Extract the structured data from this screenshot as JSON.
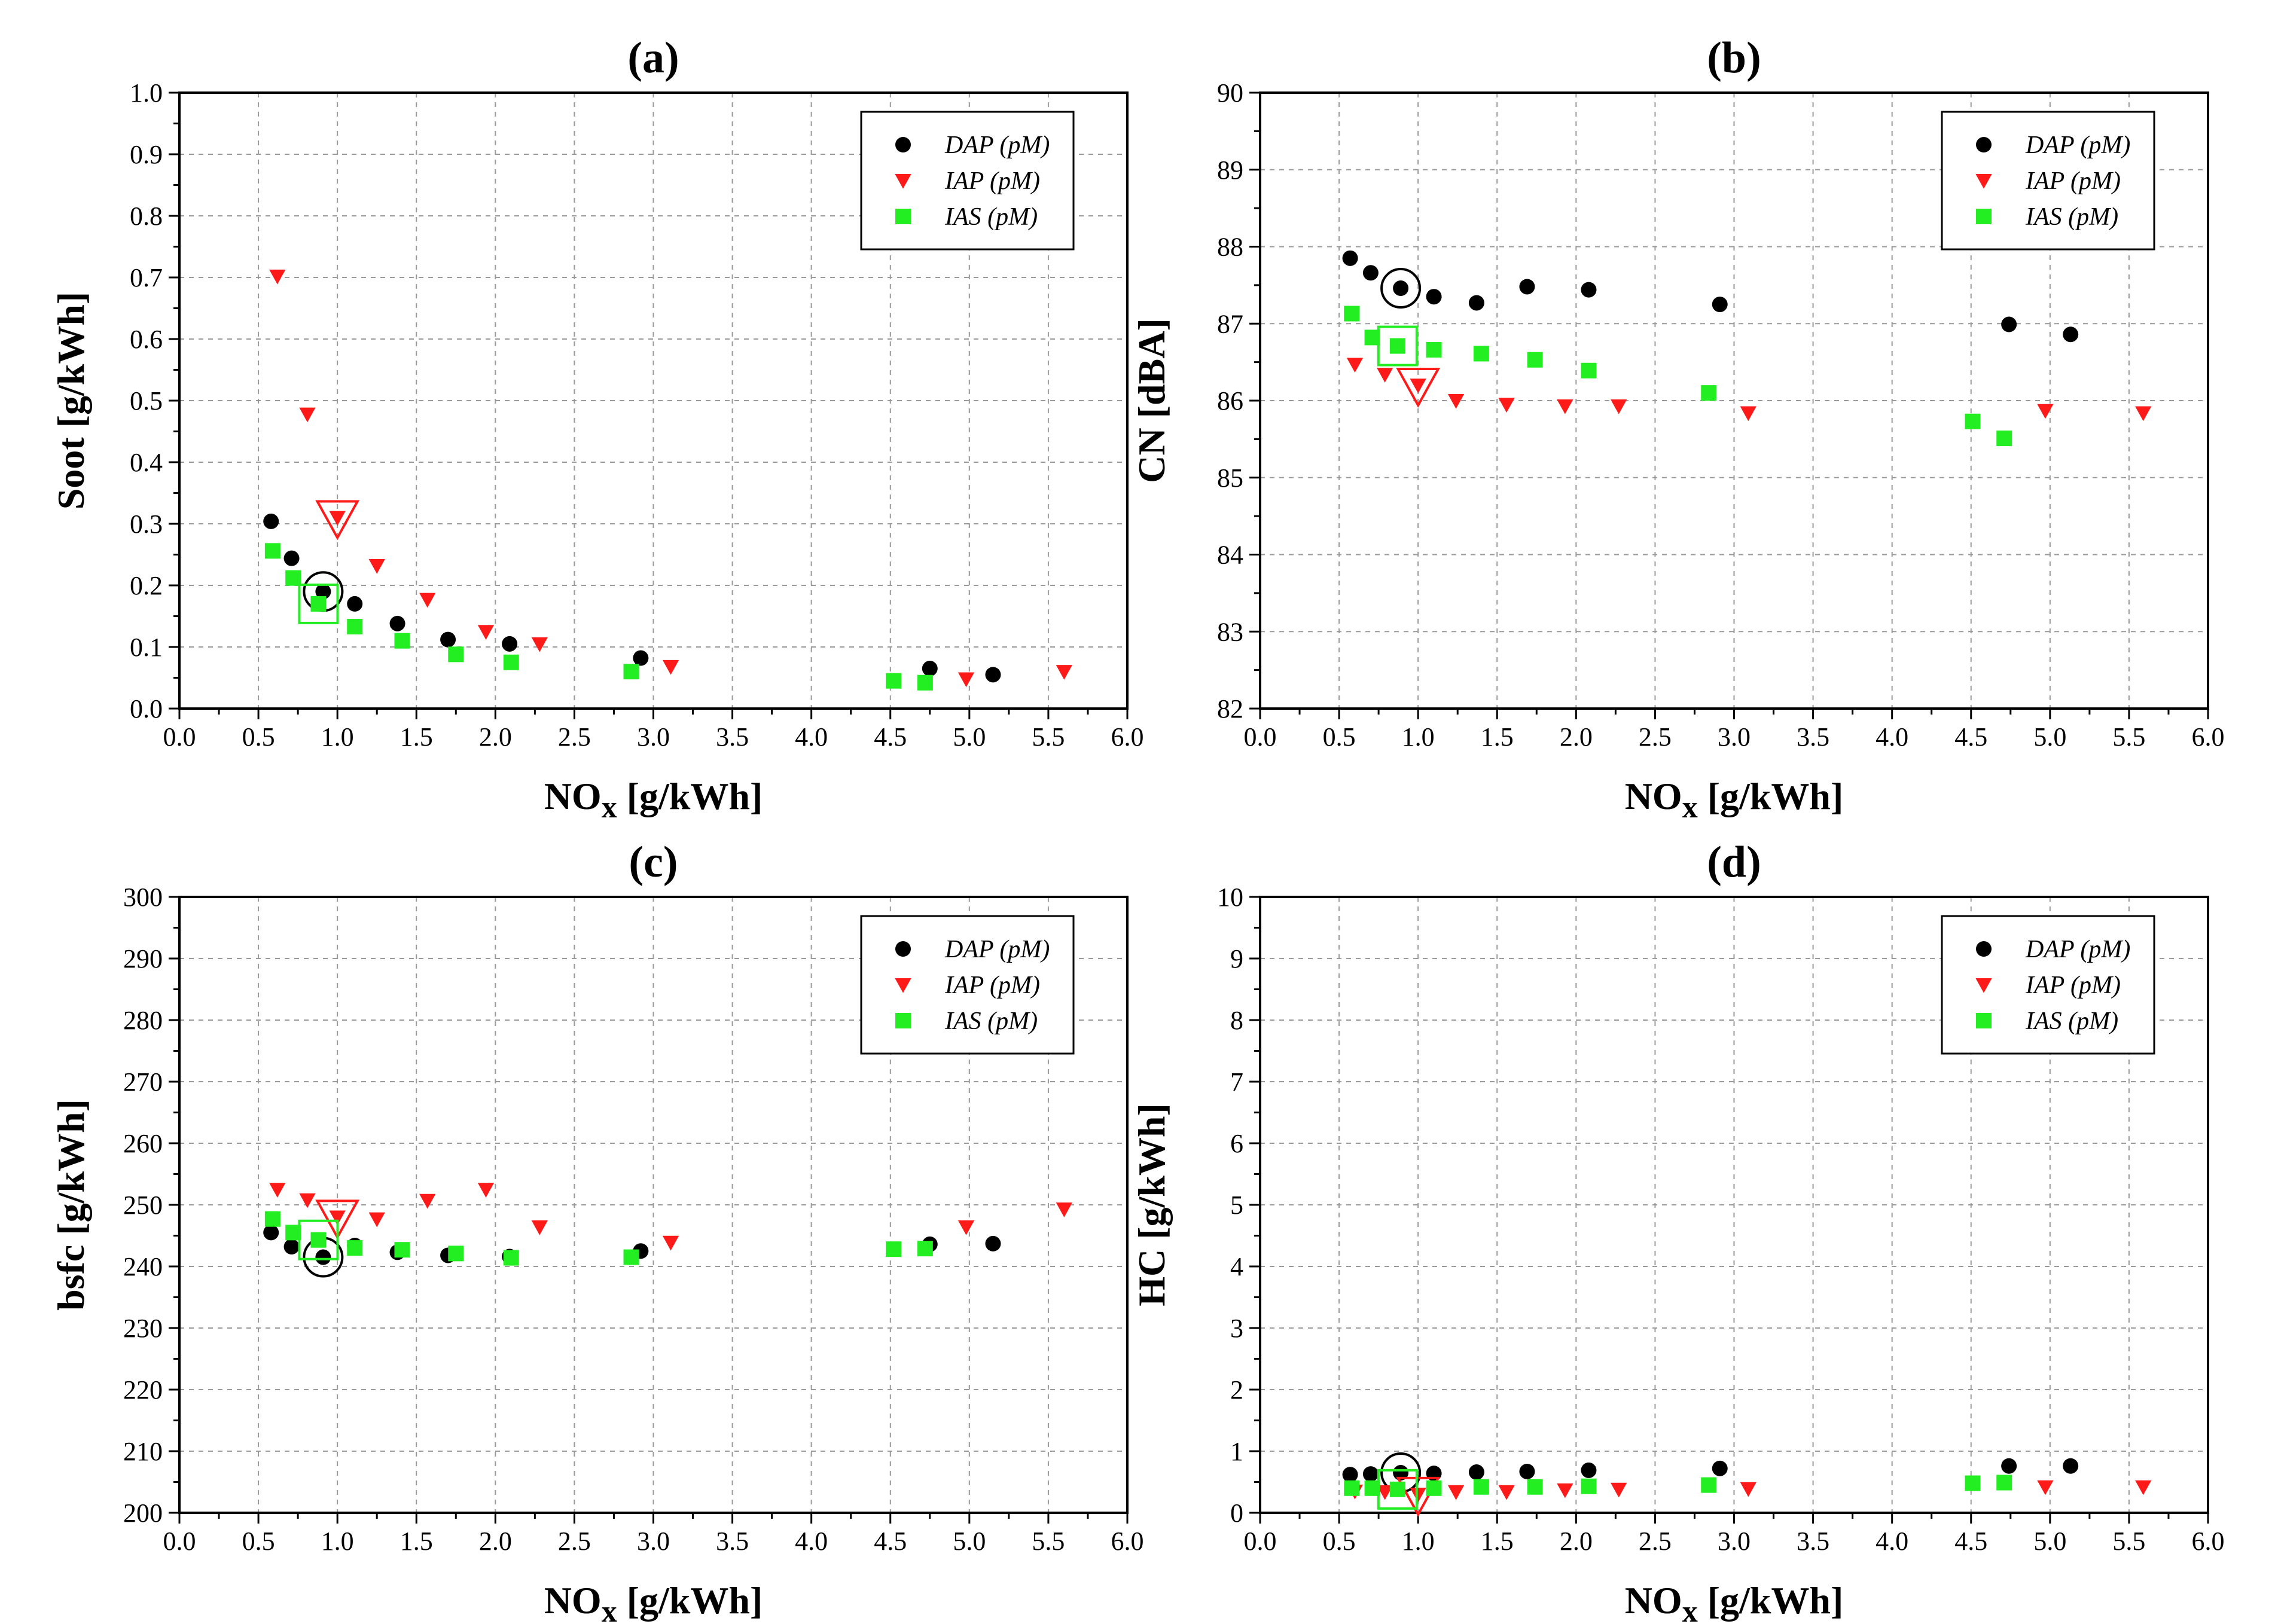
{
  "colors": {
    "dap": "#000000",
    "iap": "#ff1a1a",
    "ias": "#22ee22"
  },
  "chart_data": [
    {
      "id": "a",
      "type": "scatter",
      "title": "(a)",
      "xlabel": "NO",
      "xlabel_sub": "x",
      "xlabel_unit": "[g/kWh]",
      "ylabel": "Soot [g/kWh]",
      "xlim": [
        0,
        6
      ],
      "ylim": [
        0,
        1
      ],
      "xticks": [
        0,
        0.5,
        1,
        1.5,
        2,
        2.5,
        3,
        3.5,
        4,
        4.5,
        5,
        5.5,
        6
      ],
      "xticklabels": [
        "0.0",
        "0.5",
        "1.0",
        "1.5",
        "2.0",
        "2.5",
        "3.0",
        "3.5",
        "4.0",
        "4.5",
        "5.0",
        "5.5",
        "6.0"
      ],
      "yticks": [
        0,
        0.1,
        0.2,
        0.3,
        0.4,
        0.5,
        0.6,
        0.7,
        0.8,
        0.9,
        1.0
      ],
      "yticklabels": [
        "0.0",
        "0.1",
        "0.2",
        "0.3",
        "0.4",
        "0.5",
        "0.6",
        "0.7",
        "0.8",
        "0.9",
        "1.0"
      ],
      "legend_position": "top-right",
      "series": [
        {
          "name": "DAP (pM)",
          "marker": "circle",
          "x": [
            0.58,
            0.71,
            0.91,
            1.11,
            1.38,
            1.7,
            2.09,
            2.92,
            4.75,
            5.15
          ],
          "y": [
            0.304,
            0.244,
            0.19,
            0.17,
            0.138,
            0.112,
            0.105,
            0.082,
            0.065,
            0.055
          ],
          "highlight": {
            "x": 0.91,
            "y": 0.19
          }
        },
        {
          "name": "IAP (pM)",
          "marker": "triangle-down",
          "x": [
            0.62,
            0.81,
            1.0,
            1.25,
            1.57,
            1.94,
            2.28,
            3.11,
            4.98,
            5.6
          ],
          "y": [
            0.702,
            0.478,
            0.31,
            0.232,
            0.177,
            0.125,
            0.105,
            0.068,
            0.048,
            0.06
          ],
          "highlight": {
            "x": 1.0,
            "y": 0.31
          }
        },
        {
          "name": "IAS (pM)",
          "marker": "square",
          "x": [
            0.59,
            0.72,
            0.88,
            1.11,
            1.41,
            1.75,
            2.1,
            2.86,
            4.52,
            4.72
          ],
          "y": [
            0.256,
            0.212,
            0.17,
            0.133,
            0.11,
            0.088,
            0.075,
            0.06,
            0.045,
            0.042
          ],
          "highlight": {
            "x": 0.88,
            "y": 0.17
          }
        }
      ]
    },
    {
      "id": "b",
      "type": "scatter",
      "title": "(b)",
      "xlabel": "NO",
      "xlabel_sub": "x",
      "xlabel_unit": "[g/kWh]",
      "ylabel": "CN [dBA]",
      "xlim": [
        0,
        6
      ],
      "ylim": [
        82,
        90
      ],
      "xticks": [
        0,
        0.5,
        1,
        1.5,
        2,
        2.5,
        3,
        3.5,
        4,
        4.5,
        5,
        5.5,
        6
      ],
      "xticklabels": [
        "0.0",
        "0.5",
        "1.0",
        "1.5",
        "2.0",
        "2.5",
        "3.0",
        "3.5",
        "4.0",
        "4.5",
        "5.0",
        "5.5",
        "6.0"
      ],
      "yticks": [
        82,
        83,
        84,
        85,
        86,
        87,
        88,
        89,
        90
      ],
      "yticklabels": [
        "82",
        "83",
        "84",
        "85",
        "86",
        "87",
        "88",
        "89",
        "90"
      ],
      "legend_position": "top-right",
      "series": [
        {
          "name": "DAP (pM)",
          "marker": "circle",
          "x": [
            0.57,
            0.7,
            0.89,
            1.1,
            1.37,
            1.69,
            2.08,
            2.91,
            4.74,
            5.13
          ],
          "y": [
            87.85,
            87.66,
            87.46,
            87.35,
            87.27,
            87.48,
            87.44,
            87.25,
            86.99,
            86.86
          ],
          "highlight": {
            "x": 0.89,
            "y": 87.46
          }
        },
        {
          "name": "IAP (pM)",
          "marker": "triangle-down",
          "x": [
            0.6,
            0.79,
            1.0,
            1.24,
            1.56,
            1.93,
            2.27,
            3.09,
            4.97,
            5.59
          ],
          "y": [
            86.47,
            86.34,
            86.2,
            86.0,
            85.95,
            85.93,
            85.93,
            85.84,
            85.87,
            85.84
          ],
          "highlight": {
            "x": 1.0,
            "y": 86.2
          }
        },
        {
          "name": "IAS (pM)",
          "marker": "square",
          "x": [
            0.58,
            0.71,
            0.87,
            1.1,
            1.4,
            1.74,
            2.08,
            2.84,
            4.51,
            4.71
          ],
          "y": [
            87.13,
            86.82,
            86.71,
            86.66,
            86.61,
            86.53,
            86.39,
            86.1,
            85.73,
            85.51
          ],
          "highlight": {
            "x": 0.87,
            "y": 86.71
          }
        }
      ]
    },
    {
      "id": "c",
      "type": "scatter",
      "title": "(c)",
      "xlabel": "NO",
      "xlabel_sub": "x",
      "xlabel_unit": "[g/kWh]",
      "ylabel": "bsfc [g/kWh]",
      "xlim": [
        0,
        6
      ],
      "ylim": [
        200,
        300
      ],
      "xticks": [
        0,
        0.5,
        1,
        1.5,
        2,
        2.5,
        3,
        3.5,
        4,
        4.5,
        5,
        5.5,
        6
      ],
      "xticklabels": [
        "0.0",
        "0.5",
        "1.0",
        "1.5",
        "2.0",
        "2.5",
        "3.0",
        "3.5",
        "4.0",
        "4.5",
        "5.0",
        "5.5",
        "6.0"
      ],
      "yticks": [
        200,
        210,
        220,
        230,
        240,
        250,
        260,
        270,
        280,
        290,
        300
      ],
      "yticklabels": [
        "200",
        "210",
        "220",
        "230",
        "240",
        "250",
        "260",
        "270",
        "280",
        "290",
        "300"
      ],
      "legend_position": "top-right",
      "series": [
        {
          "name": "DAP (pM)",
          "marker": "circle",
          "x": [
            0.58,
            0.71,
            0.91,
            1.11,
            1.38,
            1.7,
            2.09,
            2.92,
            4.75,
            5.15
          ],
          "y": [
            245.5,
            243.2,
            241.5,
            243.4,
            242.3,
            241.8,
            241.6,
            242.5,
            243.6,
            243.7
          ],
          "highlight": {
            "x": 0.91,
            "y": 241.5
          }
        },
        {
          "name": "IAP (pM)",
          "marker": "triangle-down",
          "x": [
            0.62,
            0.81,
            1.0,
            1.25,
            1.57,
            1.94,
            2.28,
            3.11,
            4.98,
            5.6
          ],
          "y": [
            252.5,
            250.8,
            248.0,
            247.7,
            250.7,
            252.5,
            246.4,
            243.9,
            246.4,
            249.3
          ],
          "highlight": {
            "x": 1.0,
            "y": 248.0
          }
        },
        {
          "name": "IAS (pM)",
          "marker": "square",
          "x": [
            0.59,
            0.72,
            0.88,
            1.11,
            1.41,
            1.75,
            2.1,
            2.86,
            4.52,
            4.72
          ],
          "y": [
            247.7,
            245.5,
            244.3,
            243.0,
            242.7,
            242.1,
            241.4,
            241.5,
            242.8,
            242.9
          ],
          "highlight": {
            "x": 0.88,
            "y": 244.3
          }
        }
      ]
    },
    {
      "id": "d",
      "type": "scatter",
      "title": "(d)",
      "xlabel": "NO",
      "xlabel_sub": "x",
      "xlabel_unit": "[g/kWh]",
      "ylabel": "HC [g/kWh]",
      "xlim": [
        0,
        6
      ],
      "ylim": [
        0,
        10
      ],
      "xticks": [
        0,
        0.5,
        1,
        1.5,
        2,
        2.5,
        3,
        3.5,
        4,
        4.5,
        5,
        5.5,
        6
      ],
      "xticklabels": [
        "0.0",
        "0.5",
        "1.0",
        "1.5",
        "2.0",
        "2.5",
        "3.0",
        "3.5",
        "4.0",
        "4.5",
        "5.0",
        "5.5",
        "6.0"
      ],
      "yticks": [
        0,
        1,
        2,
        3,
        4,
        5,
        6,
        7,
        8,
        9,
        10
      ],
      "yticklabels": [
        "0",
        "1",
        "2",
        "3",
        "4",
        "5",
        "6",
        "7",
        "8",
        "9",
        "10"
      ],
      "legend_position": "top-right",
      "series": [
        {
          "name": "DAP (pM)",
          "marker": "circle",
          "x": [
            0.57,
            0.7,
            0.89,
            1.1,
            1.37,
            1.69,
            2.08,
            2.91,
            4.74,
            5.13
          ],
          "y": [
            0.62,
            0.63,
            0.65,
            0.64,
            0.66,
            0.67,
            0.69,
            0.72,
            0.76,
            0.76
          ],
          "highlight": {
            "x": 0.89,
            "y": 0.65
          }
        },
        {
          "name": "IAP (pM)",
          "marker": "triangle-down",
          "x": [
            0.6,
            0.79,
            1.0,
            1.24,
            1.56,
            1.93,
            2.27,
            3.09,
            4.97,
            5.59
          ],
          "y": [
            0.35,
            0.34,
            0.3,
            0.34,
            0.34,
            0.37,
            0.38,
            0.39,
            0.42,
            0.42
          ],
          "highlight": {
            "x": 1.0,
            "y": 0.3
          }
        },
        {
          "name": "IAS (pM)",
          "marker": "square",
          "x": [
            0.58,
            0.71,
            0.87,
            1.1,
            1.4,
            1.74,
            2.08,
            2.84,
            4.51,
            4.71
          ],
          "y": [
            0.4,
            0.4,
            0.38,
            0.4,
            0.42,
            0.42,
            0.43,
            0.45,
            0.48,
            0.49
          ],
          "highlight": {
            "x": 0.87,
            "y": 0.38
          }
        }
      ]
    }
  ]
}
